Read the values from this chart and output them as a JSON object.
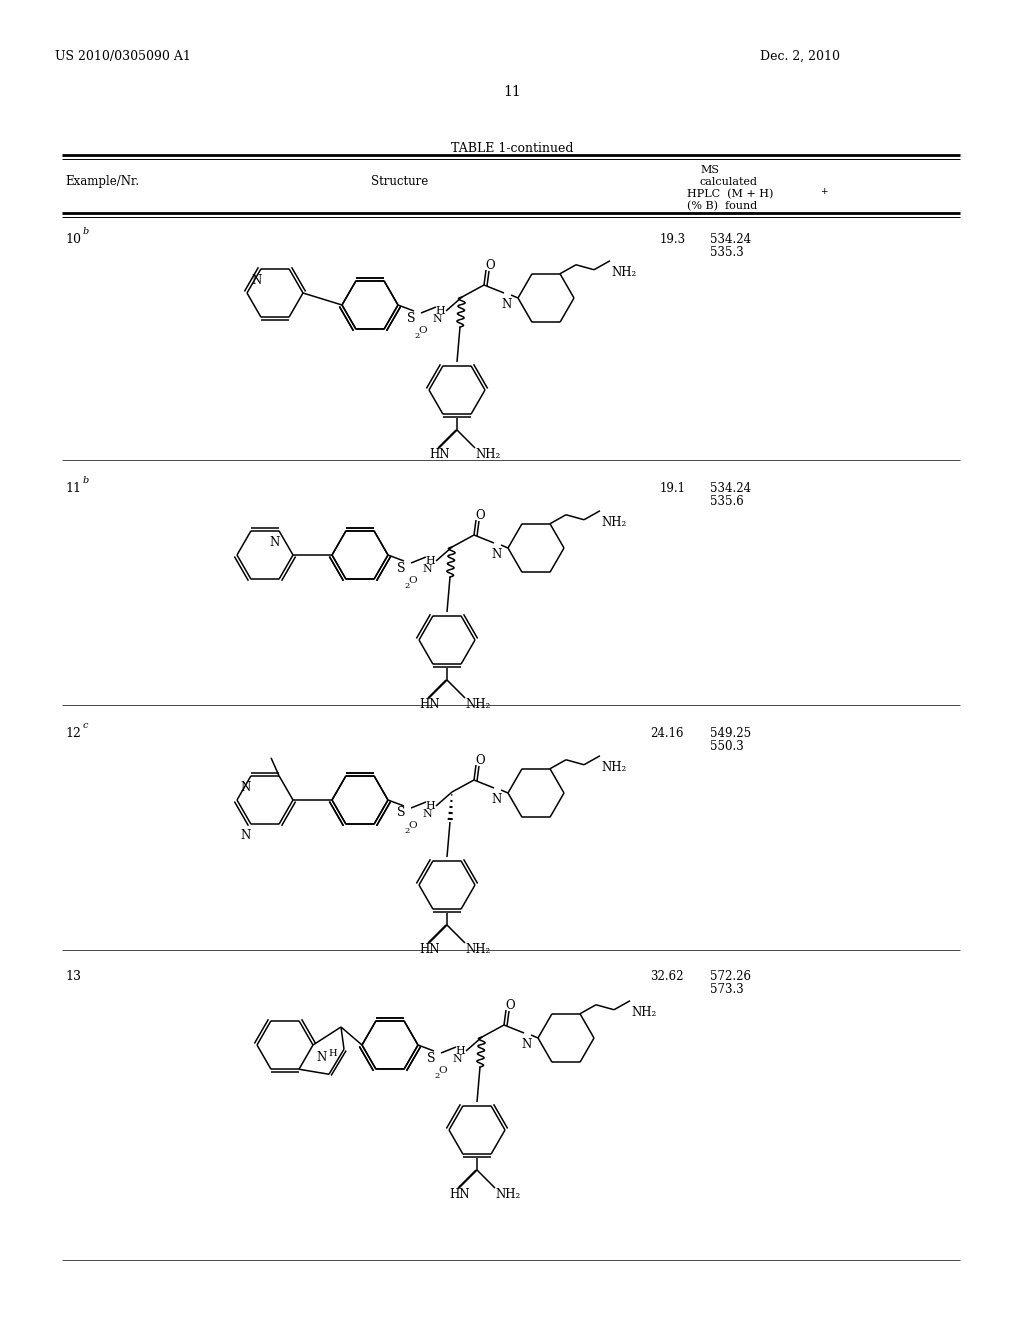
{
  "patent_number": "US 2010/0305090 A1",
  "date": "Dec. 2, 2010",
  "page_number": "11",
  "table_title": "TABLE 1-continued",
  "background_color": "#ffffff",
  "text_color": "#000000",
  "rows": [
    {
      "example": "10",
      "sup": "b",
      "hplc": "19.3",
      "ms_calc": "534.24",
      "ms_found": "535.3"
    },
    {
      "example": "11",
      "sup": "b",
      "hplc": "19.1",
      "ms_calc": "534.24",
      "ms_found": "535.6"
    },
    {
      "example": "12",
      "sup": "c",
      "hplc": "24.16",
      "ms_calc": "549.25",
      "ms_found": "550.3"
    },
    {
      "example": "13",
      "sup": "",
      "hplc": "32.62",
      "ms_calc": "572.26",
      "ms_found": "573.3"
    }
  ]
}
